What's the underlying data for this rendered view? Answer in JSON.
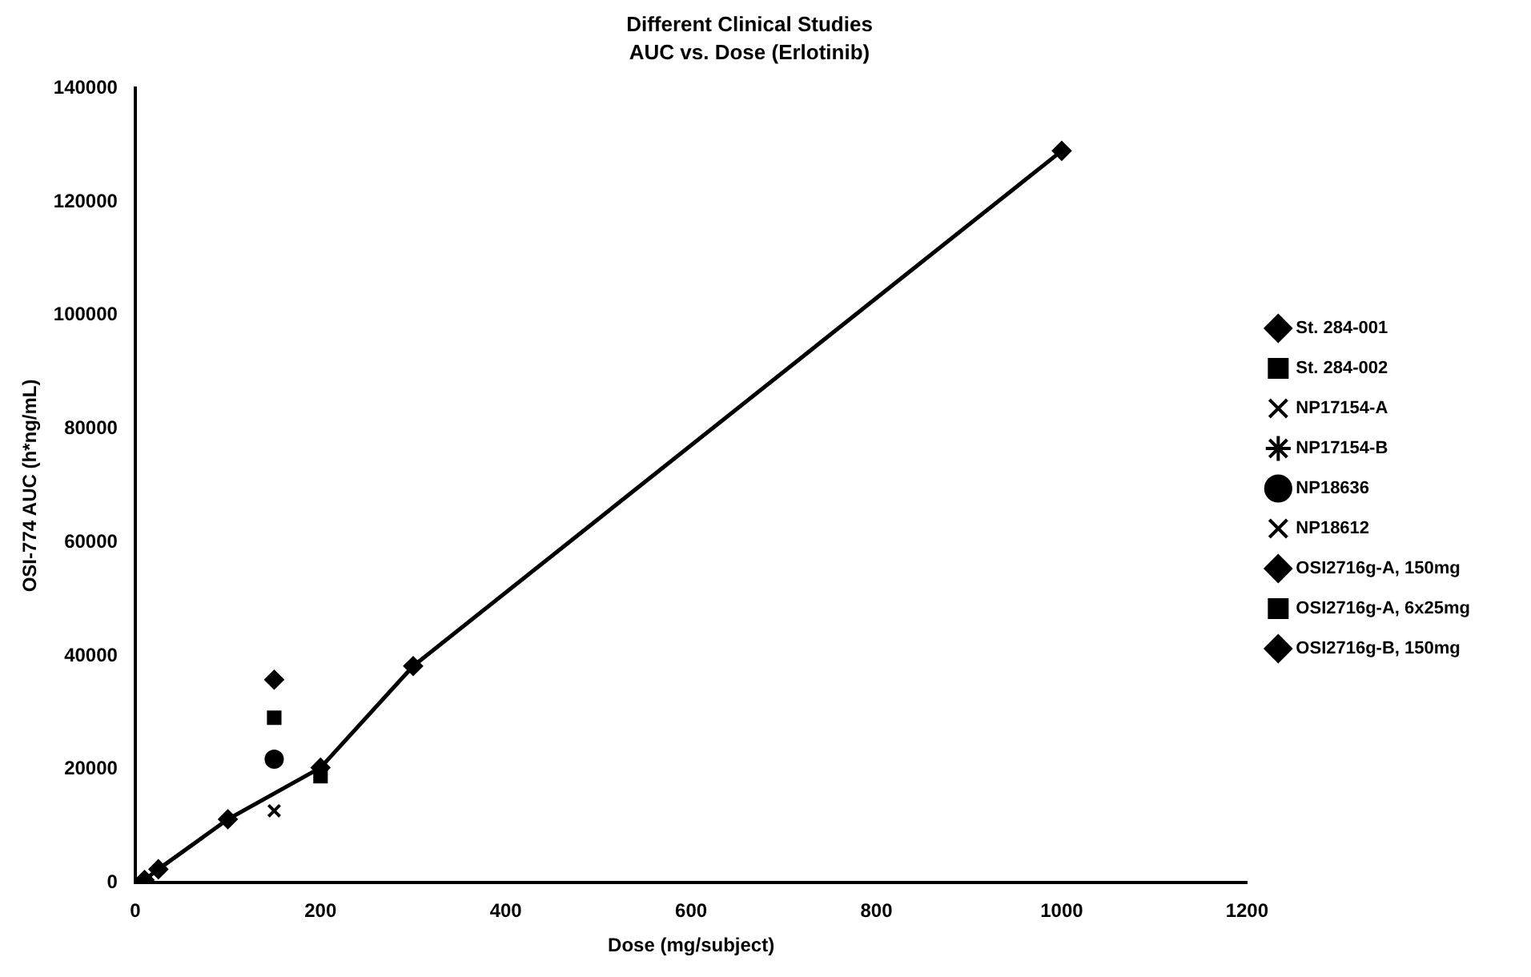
{
  "chart_data": {
    "type": "scatter",
    "title": "Different Clinical Studies",
    "subtitle": "AUC vs. Dose (Erlotinib)",
    "xlabel": "Dose (mg/subject)",
    "ylabel": "OSI-774 AUC (h*ng/mL)",
    "xlim": [
      0,
      1200
    ],
    "xticks": [
      0,
      200,
      400,
      600,
      800,
      1000,
      1200
    ],
    "ylim": [
      0,
      140000
    ],
    "yticks": [
      0,
      20000,
      40000,
      60000,
      80000,
      100000,
      120000,
      140000
    ],
    "grid": false,
    "legend": "right",
    "series": [
      {
        "name": "St. 284-001",
        "type": "line",
        "marker": "diamond",
        "color": "#000000",
        "x": [
          10,
          25,
          100,
          200,
          300,
          1000
        ],
        "values": [
          500,
          2400,
          11200,
          20300,
          38200,
          129000
        ]
      },
      {
        "name": "St. 284-002",
        "marker": "square",
        "color": "#000000",
        "x": [
          200
        ],
        "values": [
          18800
        ]
      },
      {
        "name": "NP17154-A",
        "marker": "cross",
        "color": "#000000",
        "x": [
          150
        ],
        "values": [
          12700
        ]
      },
      {
        "name": "NP17154-B",
        "marker": "star",
        "color": "#000000"
      },
      {
        "name": "NP18636",
        "marker": "circle",
        "color": "#000000",
        "x": [
          150
        ],
        "values": [
          21800
        ]
      },
      {
        "name": "NP18612",
        "marker": "cross",
        "color": "#000000"
      },
      {
        "name": "OSI2716g-A, 150mg",
        "marker": "diamond",
        "color": "#000000",
        "x": [
          150
        ],
        "values": [
          35800
        ]
      },
      {
        "name": "OSI2716g-A, 6x25mg",
        "marker": "square",
        "color": "#000000",
        "x": [
          150
        ],
        "values": [
          29100
        ]
      },
      {
        "name": "OSI2716g-B, 150mg",
        "type": "line",
        "marker": "diamond",
        "color": "#000000"
      }
    ]
  }
}
